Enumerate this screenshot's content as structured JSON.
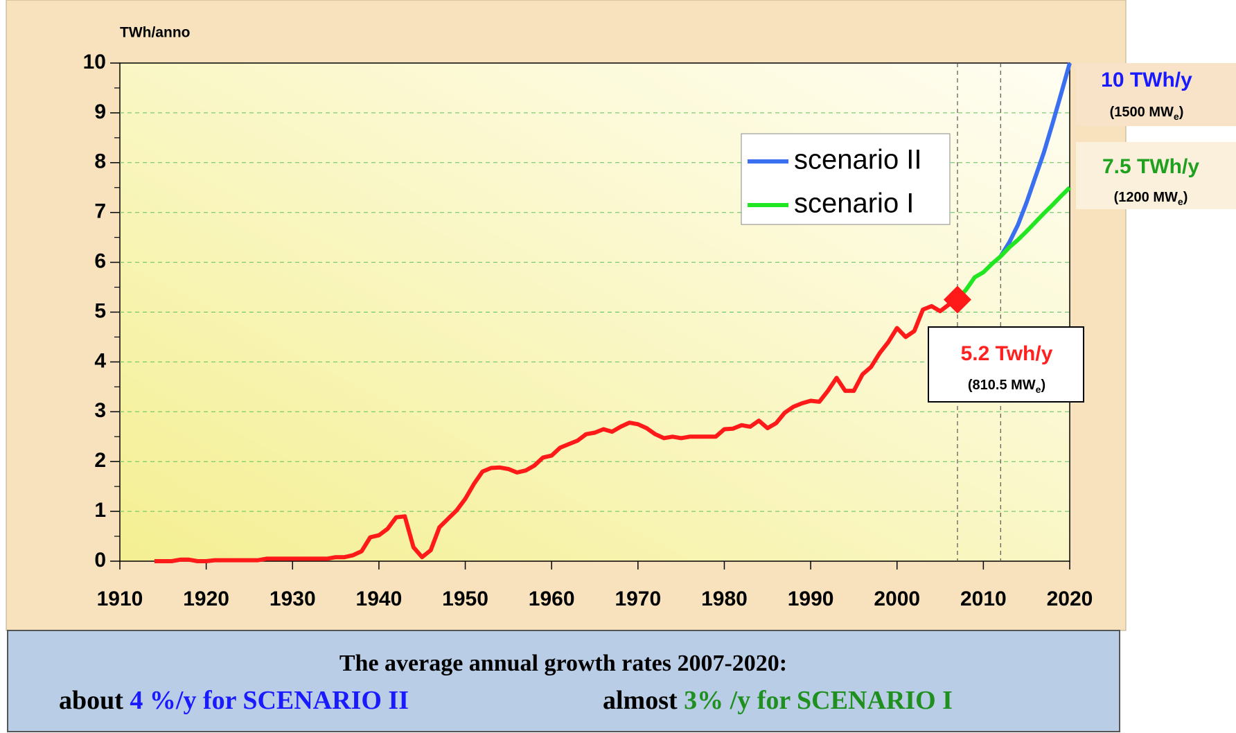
{
  "chart_data": {
    "type": "line",
    "y_axis_label": "TWh/anno",
    "xlim": [
      1910,
      2020
    ],
    "xticks": [
      1910,
      1920,
      1930,
      1940,
      1950,
      1960,
      1970,
      1980,
      1990,
      2000,
      2010,
      2020
    ],
    "ylim": [
      0,
      10
    ],
    "yticks": [
      0,
      1,
      2,
      3,
      4,
      5,
      6,
      7,
      8,
      9,
      10
    ],
    "yminorticks": [
      0.5,
      1.5,
      2.5,
      3.5,
      4.5,
      5.5,
      6.5,
      7.5,
      8.5,
      9.5
    ],
    "grid": true,
    "vlines": [
      2007,
      2012
    ],
    "legend": "upper right",
    "series": [
      {
        "color": "#ff1a1a",
        "end_marker": "diamond",
        "x": [
          1914,
          1915,
          1916,
          1917,
          1918,
          1919,
          1920,
          1921,
          1922,
          1923,
          1924,
          1925,
          1926,
          1927,
          1928,
          1929,
          1930,
          1931,
          1932,
          1933,
          1934,
          1935,
          1936,
          1937,
          1938,
          1939,
          1940,
          1941,
          1942,
          1943,
          1944,
          1945,
          1946,
          1947,
          1948,
          1949,
          1950,
          1951,
          1952,
          1953,
          1954,
          1955,
          1956,
          1957,
          1958,
          1959,
          1960,
          1961,
          1962,
          1963,
          1964,
          1965,
          1966,
          1967,
          1968,
          1969,
          1970,
          1971,
          1972,
          1973,
          1974,
          1975,
          1976,
          1977,
          1978,
          1979,
          1980,
          1981,
          1982,
          1983,
          1984,
          1985,
          1986,
          1987,
          1988,
          1989,
          1990,
          1991,
          1992,
          1993,
          1994,
          1995,
          1996,
          1997,
          1998,
          1999,
          2000,
          2001,
          2002,
          2003,
          2004,
          2005,
          2006,
          2007
        ],
        "values": [
          0,
          0,
          0,
          0.03,
          0.03,
          0,
          0,
          0.02,
          0.02,
          0.02,
          0.02,
          0.02,
          0.02,
          0.05,
          0.05,
          0.05,
          0.05,
          0.05,
          0.05,
          0.05,
          0.05,
          0.08,
          0.08,
          0.12,
          0.2,
          0.48,
          0.52,
          0.65,
          0.88,
          0.9,
          0.28,
          0.08,
          0.22,
          0.68,
          0.85,
          1.02,
          1.25,
          1.55,
          1.8,
          1.87,
          1.88,
          1.85,
          1.78,
          1.82,
          1.92,
          2.08,
          2.12,
          2.28,
          2.35,
          2.42,
          2.55,
          2.58,
          2.65,
          2.6,
          2.7,
          2.78,
          2.75,
          2.67,
          2.55,
          2.47,
          2.5,
          2.47,
          2.5,
          2.5,
          2.5,
          2.5,
          2.65,
          2.66,
          2.73,
          2.7,
          2.82,
          2.67,
          2.77,
          2.98,
          3.1,
          3.17,
          3.22,
          3.2,
          3.42,
          3.68,
          3.42,
          3.42,
          3.75,
          3.9,
          4.18,
          4.4,
          4.68,
          4.5,
          4.62,
          5.05,
          5.12,
          5.02,
          5.15,
          5.25
        ]
      },
      {
        "name": "scenario II",
        "color": "#3a6ff0",
        "x": [
          2012,
          2013,
          2014,
          2015,
          2016,
          2017,
          2018,
          2019,
          2020
        ],
        "values": [
          6.12,
          6.4,
          6.75,
          7.2,
          7.7,
          8.2,
          8.78,
          9.38,
          10
        ]
      },
      {
        "name": "scenario I",
        "color": "#22e622",
        "x": [
          2007,
          2008,
          2009,
          2010,
          2011,
          2012,
          2013,
          2014,
          2015,
          2016,
          2017,
          2018,
          2019,
          2020
        ],
        "values": [
          5.25,
          5.45,
          5.7,
          5.8,
          5.97,
          6.12,
          6.3,
          6.45,
          6.62,
          6.8,
          6.98,
          7.15,
          7.33,
          7.5
        ]
      }
    ],
    "annotations": [
      {
        "text": "10 TWh/y",
        "sub_pre": "(1500 MW",
        "sub": "e",
        "sub_post": ")",
        "color": "#1a1aff"
      },
      {
        "text": "7.5 TWh/y",
        "sub_pre": "(1200 MW",
        "sub": "e",
        "sub_post": ")",
        "color": "#1fa01f"
      },
      {
        "text": "5.2 Twh/y",
        "sub_pre": "(810.5 MW",
        "sub": "e",
        "sub_post": ")",
        "color": "#ff2020"
      }
    ],
    "footer": {
      "line1": "The average annual growth rates 2007-2020:",
      "line2": [
        {
          "text": "about ",
          "color": "#000000"
        },
        {
          "text": "4 %/y for SCENARIO II",
          "color": "#1a1aff"
        },
        {
          "text": "almost ",
          "color": "#000000"
        },
        {
          "text": "3% /y for SCENARIO I",
          "color": "#1f8f1f"
        }
      ]
    }
  }
}
